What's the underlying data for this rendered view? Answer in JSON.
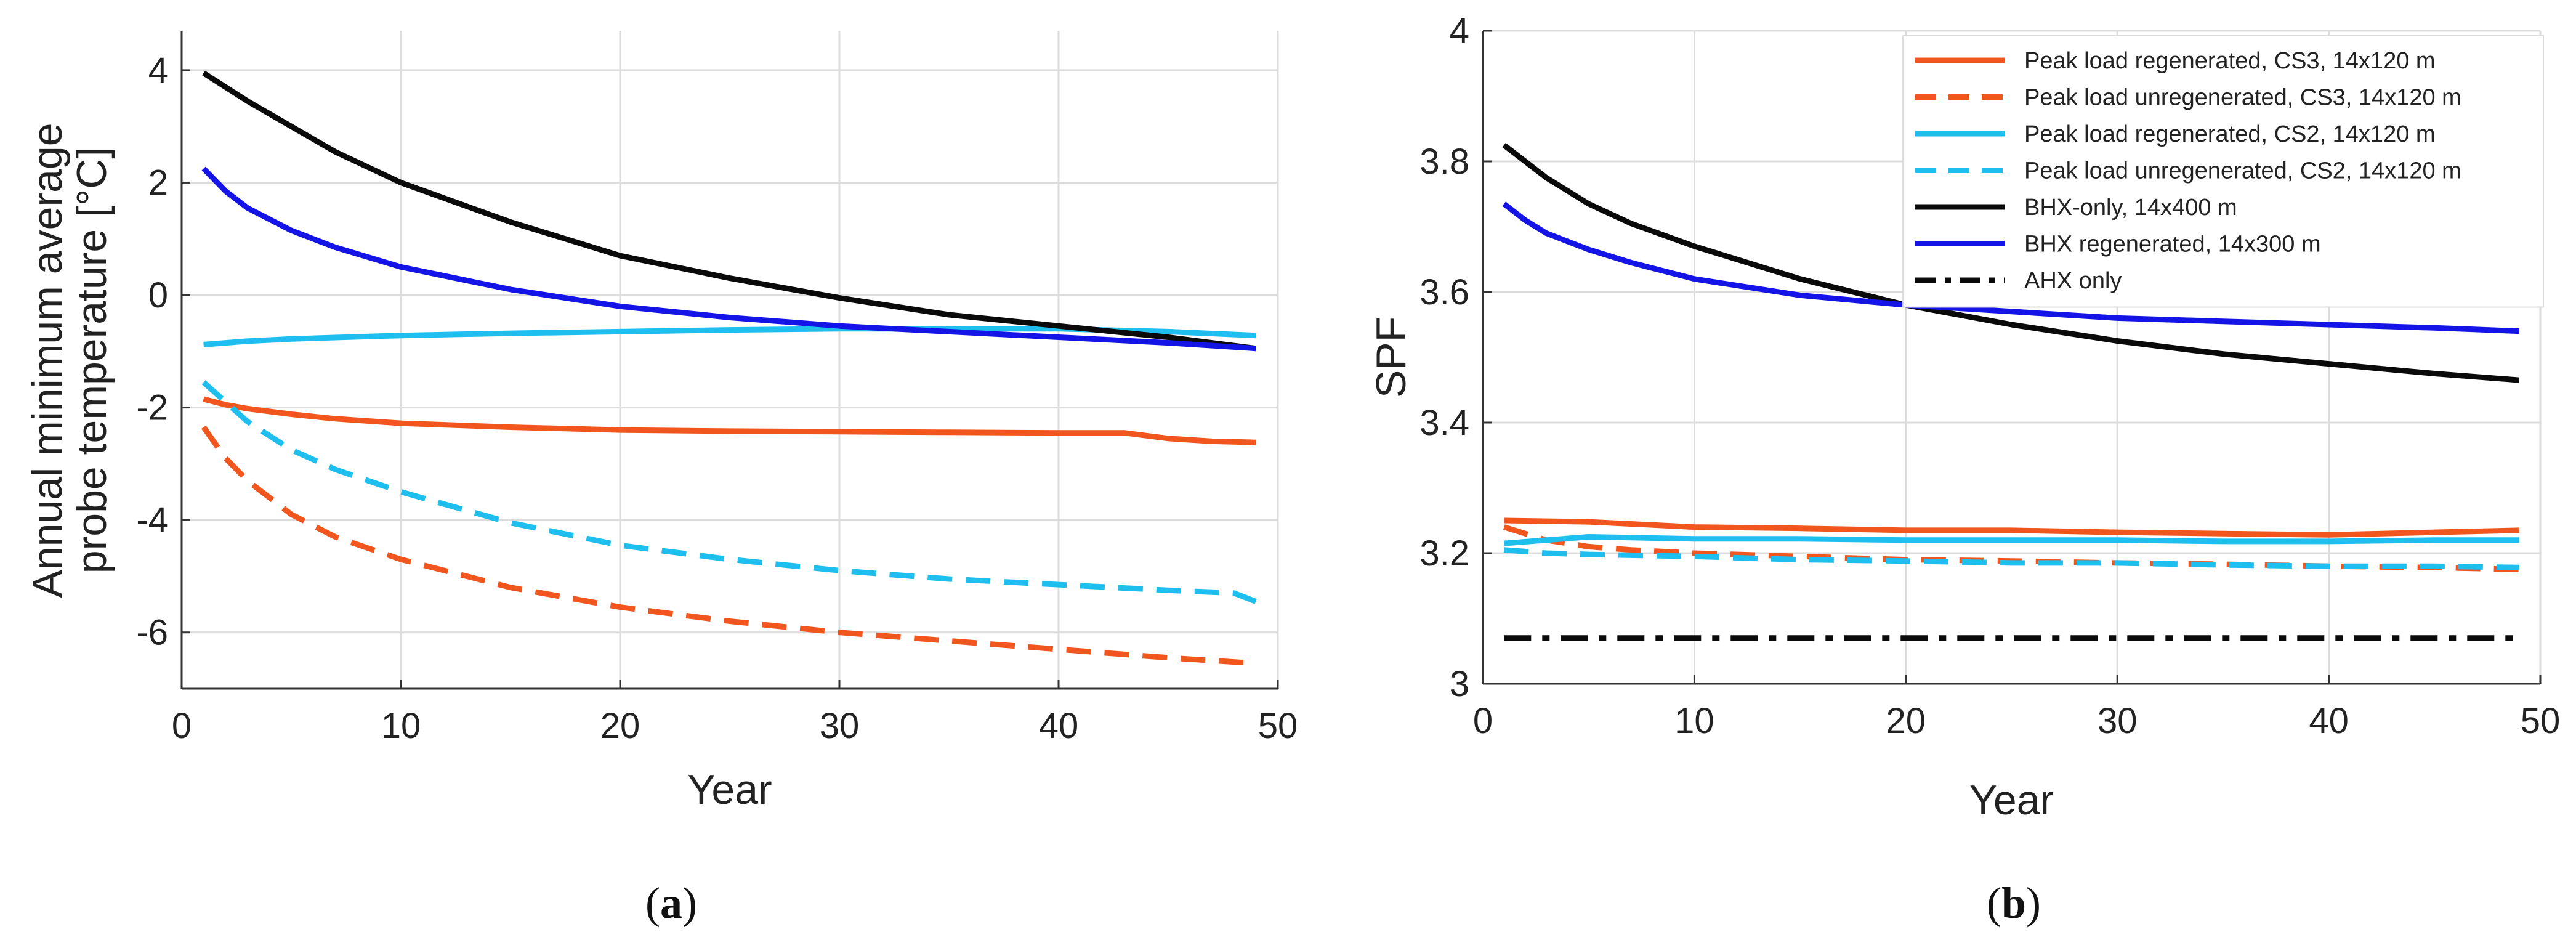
{
  "chart_data": [
    {
      "type": "line",
      "panel_label": "(a)",
      "xlabel": "Year",
      "ylabel_lines": [
        "Annual minimum average",
        "probe temperature [°C]"
      ],
      "xlim": [
        0,
        50
      ],
      "ylim": [
        -7,
        4.7
      ],
      "xticks": [
        0,
        10,
        20,
        30,
        40,
        50
      ],
      "yticks": [
        -6,
        -4,
        -2,
        0,
        2,
        4
      ],
      "xtick_labels": [
        "0",
        "10",
        "20",
        "30",
        "40",
        "50"
      ],
      "ytick_labels": [
        "-6",
        "-4",
        "-2",
        "0",
        "2",
        "4"
      ],
      "grid": true,
      "legend": false,
      "series": [
        {
          "name": "Peak load regenerated, CS3, 14x120 m",
          "color": "#f0561d",
          "dash": "solid",
          "x": [
            1,
            2,
            3,
            5,
            7,
            10,
            15,
            20,
            25,
            30,
            35,
            40,
            43,
            45,
            47,
            49
          ],
          "y": [
            -1.85,
            -1.95,
            -2.02,
            -2.12,
            -2.2,
            -2.28,
            -2.35,
            -2.4,
            -2.42,
            -2.43,
            -2.44,
            -2.45,
            -2.45,
            -2.55,
            -2.6,
            -2.62
          ]
        },
        {
          "name": "Peak load unregenerated, CS3, 14x120 m",
          "color": "#f0561d",
          "dash": "dashed",
          "x": [
            1,
            2,
            3,
            5,
            7,
            10,
            15,
            20,
            25,
            30,
            35,
            40,
            45,
            49
          ],
          "y": [
            -2.35,
            -2.9,
            -3.3,
            -3.9,
            -4.3,
            -4.7,
            -5.2,
            -5.55,
            -5.8,
            -6.0,
            -6.15,
            -6.3,
            -6.45,
            -6.55
          ]
        },
        {
          "name": "Peak load regenerated, CS2, 14x120 m",
          "color": "#1ebfef",
          "dash": "solid",
          "x": [
            1,
            3,
            5,
            10,
            15,
            20,
            25,
            30,
            35,
            40,
            45,
            49
          ],
          "y": [
            -0.88,
            -0.82,
            -0.78,
            -0.72,
            -0.68,
            -0.65,
            -0.62,
            -0.6,
            -0.6,
            -0.6,
            -0.65,
            -0.72
          ]
        },
        {
          "name": "Peak load unregenerated, CS2, 14x120 m",
          "color": "#1ebfef",
          "dash": "dashed",
          "x": [
            1,
            2,
            3,
            5,
            7,
            10,
            15,
            20,
            25,
            30,
            35,
            40,
            45,
            48,
            49
          ],
          "y": [
            -1.55,
            -1.9,
            -2.25,
            -2.75,
            -3.1,
            -3.5,
            -4.05,
            -4.45,
            -4.7,
            -4.9,
            -5.05,
            -5.15,
            -5.25,
            -5.3,
            -5.45
          ]
        },
        {
          "name": "BHX-only, 14x400 m",
          "color": "#0a0a0a",
          "dash": "solid",
          "x": [
            1,
            2,
            3,
            5,
            7,
            10,
            15,
            20,
            25,
            30,
            35,
            40,
            45,
            49
          ],
          "y": [
            3.95,
            3.7,
            3.45,
            3.0,
            2.55,
            2.0,
            1.3,
            0.7,
            0.3,
            -0.05,
            -0.35,
            -0.55,
            -0.75,
            -0.95
          ]
        },
        {
          "name": "BHX regenerated, 14x300 m",
          "color": "#1414e6",
          "dash": "solid",
          "x": [
            1,
            2,
            3,
            5,
            7,
            10,
            15,
            20,
            25,
            30,
            35,
            40,
            45,
            49
          ],
          "y": [
            2.25,
            1.85,
            1.55,
            1.15,
            0.85,
            0.5,
            0.1,
            -0.2,
            -0.4,
            -0.55,
            -0.65,
            -0.75,
            -0.85,
            -0.95
          ]
        }
      ]
    },
    {
      "type": "line",
      "panel_label": "(b)",
      "xlabel": "Year",
      "ylabel": "SPF",
      "xlim": [
        0,
        50
      ],
      "ylim": [
        3.0,
        4.0
      ],
      "xticks": [
        0,
        10,
        20,
        30,
        40,
        50
      ],
      "yticks": [
        3.0,
        3.2,
        3.4,
        3.6,
        3.8,
        4.0
      ],
      "xtick_labels": [
        "0",
        "10",
        "20",
        "30",
        "40",
        "50"
      ],
      "ytick_labels": [
        "3",
        "3.2",
        "3.4",
        "3.6",
        "3.8",
        "4"
      ],
      "grid": true,
      "legend": true,
      "legend_position": "top-right",
      "series": [
        {
          "name": "Peak load regenerated, CS3, 14x120 m",
          "color": "#f0561d",
          "dash": "solid",
          "x": [
            1,
            5,
            10,
            15,
            20,
            25,
            30,
            35,
            40,
            45,
            49
          ],
          "y": [
            3.25,
            3.248,
            3.24,
            3.238,
            3.235,
            3.235,
            3.232,
            3.23,
            3.228,
            3.232,
            3.235
          ]
        },
        {
          "name": "Peak load unregenerated, CS3, 14x120 m",
          "color": "#f0561d",
          "dash": "dashed",
          "x": [
            1,
            2,
            3,
            5,
            7,
            10,
            15,
            20,
            25,
            30,
            35,
            40,
            45,
            49
          ],
          "y": [
            3.24,
            3.23,
            3.22,
            3.21,
            3.205,
            3.2,
            3.195,
            3.19,
            3.188,
            3.185,
            3.183,
            3.18,
            3.178,
            3.175
          ]
        },
        {
          "name": "Peak load regenerated, CS2, 14x120 m",
          "color": "#1ebfef",
          "dash": "solid",
          "x": [
            1,
            5,
            10,
            15,
            20,
            25,
            30,
            35,
            40,
            45,
            49
          ],
          "y": [
            3.215,
            3.225,
            3.222,
            3.222,
            3.22,
            3.22,
            3.22,
            3.218,
            3.218,
            3.22,
            3.22
          ]
        },
        {
          "name": "Peak load unregenerated, CS2, 14x120 m",
          "color": "#1ebfef",
          "dash": "dashed",
          "x": [
            1,
            3,
            5,
            10,
            15,
            20,
            25,
            30,
            35,
            40,
            45,
            49
          ],
          "y": [
            3.205,
            3.2,
            3.198,
            3.195,
            3.19,
            3.188,
            3.185,
            3.185,
            3.182,
            3.18,
            3.18,
            3.178
          ]
        },
        {
          "name": "BHX-only, 14x400 m",
          "color": "#0a0a0a",
          "dash": "solid",
          "x": [
            1,
            2,
            3,
            5,
            7,
            10,
            15,
            20,
            25,
            30,
            35,
            40,
            45,
            49
          ],
          "y": [
            3.825,
            3.8,
            3.775,
            3.735,
            3.705,
            3.67,
            3.62,
            3.58,
            3.55,
            3.525,
            3.505,
            3.49,
            3.475,
            3.465
          ]
        },
        {
          "name": "BHX regenerated, 14x300 m",
          "color": "#1414e6",
          "dash": "solid",
          "x": [
            1,
            2,
            3,
            5,
            7,
            10,
            15,
            20,
            25,
            30,
            35,
            40,
            45,
            49
          ],
          "y": [
            3.735,
            3.71,
            3.69,
            3.665,
            3.645,
            3.62,
            3.595,
            3.58,
            3.57,
            3.56,
            3.555,
            3.55,
            3.545,
            3.54
          ]
        },
        {
          "name": "AHX only",
          "color": "#0a0a0a",
          "dash": "dashdot",
          "x": [
            1,
            49
          ],
          "y": [
            3.07,
            3.07
          ]
        }
      ]
    }
  ]
}
